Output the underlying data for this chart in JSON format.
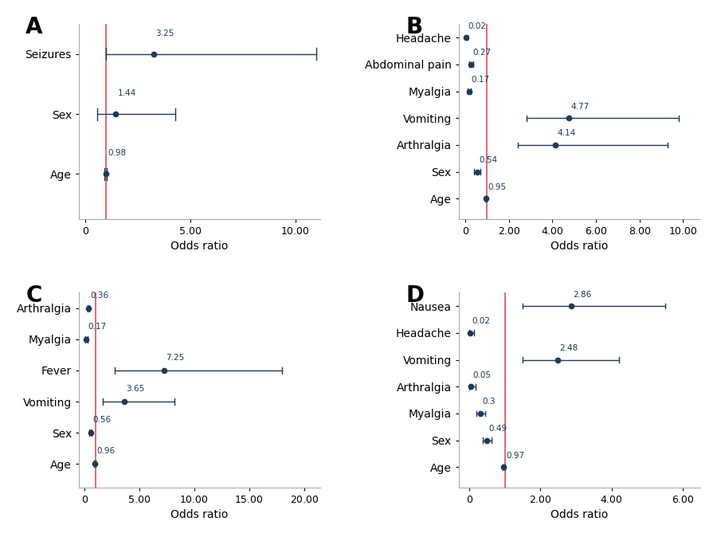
{
  "panels": {
    "A": {
      "title": "A",
      "categories": [
        "Seizures",
        "Sex",
        "Age"
      ],
      "or": [
        3.25,
        1.44,
        0.98
      ],
      "ci_low": [
        1.0,
        0.58,
        0.93
      ],
      "ci_high": [
        11.0,
        4.3,
        1.03
      ],
      "xlim": [
        -0.3,
        11.2
      ],
      "xticks": [
        0,
        5.0,
        10.0
      ],
      "xticklabels": [
        "0",
        "5.00",
        "10.00"
      ]
    },
    "B": {
      "title": "B",
      "categories": [
        "Headache",
        "Abdominal pain",
        "Myalgia",
        "Vomiting",
        "Arthralgia",
        "Sex",
        "Age"
      ],
      "or": [
        0.02,
        0.27,
        0.17,
        4.77,
        4.14,
        0.54,
        0.95
      ],
      "ci_low": [
        0.001,
        0.18,
        0.1,
        2.8,
        2.4,
        0.42,
        0.91
      ],
      "ci_high": [
        0.1,
        0.37,
        0.26,
        9.8,
        9.3,
        0.68,
        0.99
      ],
      "xlim": [
        -0.3,
        10.8
      ],
      "xticks": [
        0,
        2.0,
        4.0,
        6.0,
        8.0,
        10.0
      ],
      "xticklabels": [
        "0",
        "2.00",
        "4.00",
        "6.00",
        "8.00",
        "10.00"
      ]
    },
    "C": {
      "title": "C",
      "categories": [
        "Arthralgia",
        "Myalgia",
        "Fever",
        "Vomiting",
        "Sex",
        "Age"
      ],
      "or": [
        0.36,
        0.17,
        7.25,
        3.65,
        0.56,
        0.96
      ],
      "ci_low": [
        0.27,
        0.06,
        2.8,
        1.7,
        0.46,
        0.91
      ],
      "ci_high": [
        0.47,
        0.3,
        18.0,
        8.2,
        0.66,
        1.01
      ],
      "xlim": [
        -0.5,
        21.5
      ],
      "xticks": [
        0,
        5.0,
        10.0,
        15.0,
        20.0
      ],
      "xticklabels": [
        "0",
        "5.00",
        "10.00",
        "15.00",
        "20.00"
      ]
    },
    "D": {
      "title": "D",
      "categories": [
        "Nausea",
        "Headache",
        "Vomiting",
        "Arthralgia",
        "Myalgia",
        "Sex",
        "Age"
      ],
      "or": [
        2.86,
        0.02,
        2.48,
        0.05,
        0.3,
        0.49,
        0.97
      ],
      "ci_low": [
        1.5,
        0.001,
        1.5,
        0.005,
        0.2,
        0.37,
        0.93
      ],
      "ci_high": [
        5.5,
        0.12,
        4.2,
        0.18,
        0.44,
        0.63,
        1.01
      ],
      "xlim": [
        -0.3,
        6.5
      ],
      "xticks": [
        0,
        2.0,
        4.0,
        6.0
      ],
      "xticklabels": [
        "0",
        "2.00",
        "4.00",
        "6.00"
      ]
    }
  },
  "dot_color": "#1b3a5c",
  "line_color": "#1b3a5c",
  "ref_line_color": "#d9534f",
  "ref_line_x": 1.0,
  "xlabel": "Odds ratio",
  "label_fontsize": 10,
  "tick_fontsize": 9,
  "panel_label_fontsize": 20,
  "value_fontsize": 7.5,
  "dot_size": 4.5,
  "cap_size": 0.1,
  "line_width": 1.0
}
